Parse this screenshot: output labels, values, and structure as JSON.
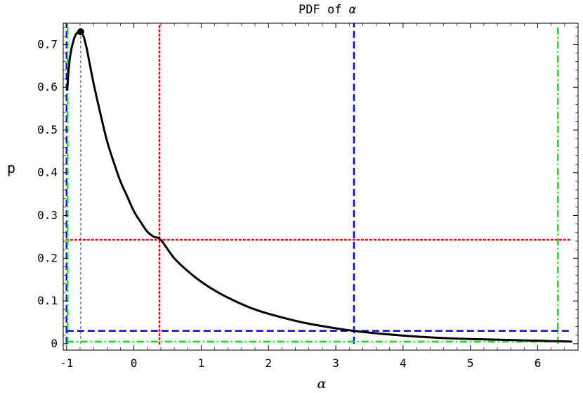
{
  "chart_data": {
    "type": "line",
    "title_prefix": "PDF of",
    "title_symbol": "α",
    "xlabel": "α",
    "ylabel": "p",
    "xlim": [
      -1.05,
      6.6
    ],
    "ylim": [
      -0.015,
      0.75
    ],
    "xticks": [
      {
        "v": -1,
        "label": "-1"
      },
      {
        "v": 0,
        "label": "0"
      },
      {
        "v": 1,
        "label": "1"
      },
      {
        "v": 2,
        "label": "2"
      },
      {
        "v": 3,
        "label": "3"
      },
      {
        "v": 4,
        "label": "4"
      },
      {
        "v": 5,
        "label": "5"
      },
      {
        "v": 6,
        "label": "6"
      }
    ],
    "yticks": [
      {
        "v": 0,
        "label": "0"
      },
      {
        "v": 0.1,
        "label": "0.1"
      },
      {
        "v": 0.2,
        "label": "0.2"
      },
      {
        "v": 0.3,
        "label": "0.3"
      },
      {
        "v": 0.4,
        "label": "0.4"
      },
      {
        "v": 0.5,
        "label": "0.5"
      },
      {
        "v": 0.6,
        "label": "0.6"
      },
      {
        "v": 0.7,
        "label": "0.7"
      }
    ],
    "grid": false,
    "series": [
      {
        "color": "#000000",
        "style": "solid",
        "x": [
          -0.99,
          -0.97,
          -0.94,
          -0.9,
          -0.86,
          -0.82,
          -0.79,
          -0.75,
          -0.7,
          -0.6,
          -0.5,
          -0.4,
          -0.3,
          -0.2,
          -0.1,
          0.0,
          0.1,
          0.2,
          0.3,
          0.4,
          0.6,
          0.8,
          1.0,
          1.25,
          1.5,
          1.75,
          2.0,
          2.5,
          3.0,
          3.27,
          3.5,
          4.0,
          4.5,
          5.0,
          5.5,
          6.0,
          6.5
        ],
        "y": [
          0.595,
          0.64,
          0.68,
          0.708,
          0.724,
          0.73,
          0.73,
          0.72,
          0.69,
          0.61,
          0.54,
          0.475,
          0.425,
          0.38,
          0.345,
          0.31,
          0.285,
          0.262,
          0.25,
          0.243,
          0.2,
          0.17,
          0.145,
          0.12,
          0.1,
          0.083,
          0.07,
          0.05,
          0.036,
          0.03,
          0.026,
          0.019,
          0.014,
          0.011,
          0.009,
          0.007,
          0.005
        ]
      }
    ],
    "mode_point": {
      "x": -0.79,
      "y": 0.73
    },
    "reference_lines": [
      {
        "color": "#000000",
        "style": "thin-dashed",
        "orientation": "vertical",
        "x": -0.79,
        "y_from": 0,
        "y_to": 0.73
      },
      {
        "color": "#ff0000",
        "style": "dotted",
        "orientation": "vertical",
        "x": 0.38,
        "y_from": 0,
        "y_to": 0.75
      },
      {
        "color": "#ff0000",
        "style": "dotted",
        "orientation": "horizontal",
        "y": 0.243,
        "x_from": -1.0,
        "x_to": 6.5
      },
      {
        "color": "#0000ff",
        "style": "dashed",
        "orientation": "vertical",
        "x": -1.0,
        "y_from": 0,
        "y_to": 0.75
      },
      {
        "color": "#0000ff",
        "style": "dashed",
        "orientation": "vertical",
        "x": 3.27,
        "y_from": 0,
        "y_to": 0.75
      },
      {
        "color": "#0000ff",
        "style": "dashed",
        "orientation": "horizontal",
        "y": 0.03,
        "x_from": -1.0,
        "x_to": 6.5
      },
      {
        "color": "#00ee00",
        "style": "dash-dot",
        "orientation": "vertical",
        "x": -0.985,
        "y_from": 0,
        "y_to": 0.75
      },
      {
        "color": "#00ee00",
        "style": "dash-dot",
        "orientation": "vertical",
        "x": 6.3,
        "y_from": 0,
        "y_to": 0.74
      },
      {
        "color": "#00ee00",
        "style": "dash-dot",
        "orientation": "horizontal",
        "y": 0.005,
        "x_from": -1.0,
        "x_to": 6.5
      }
    ]
  }
}
